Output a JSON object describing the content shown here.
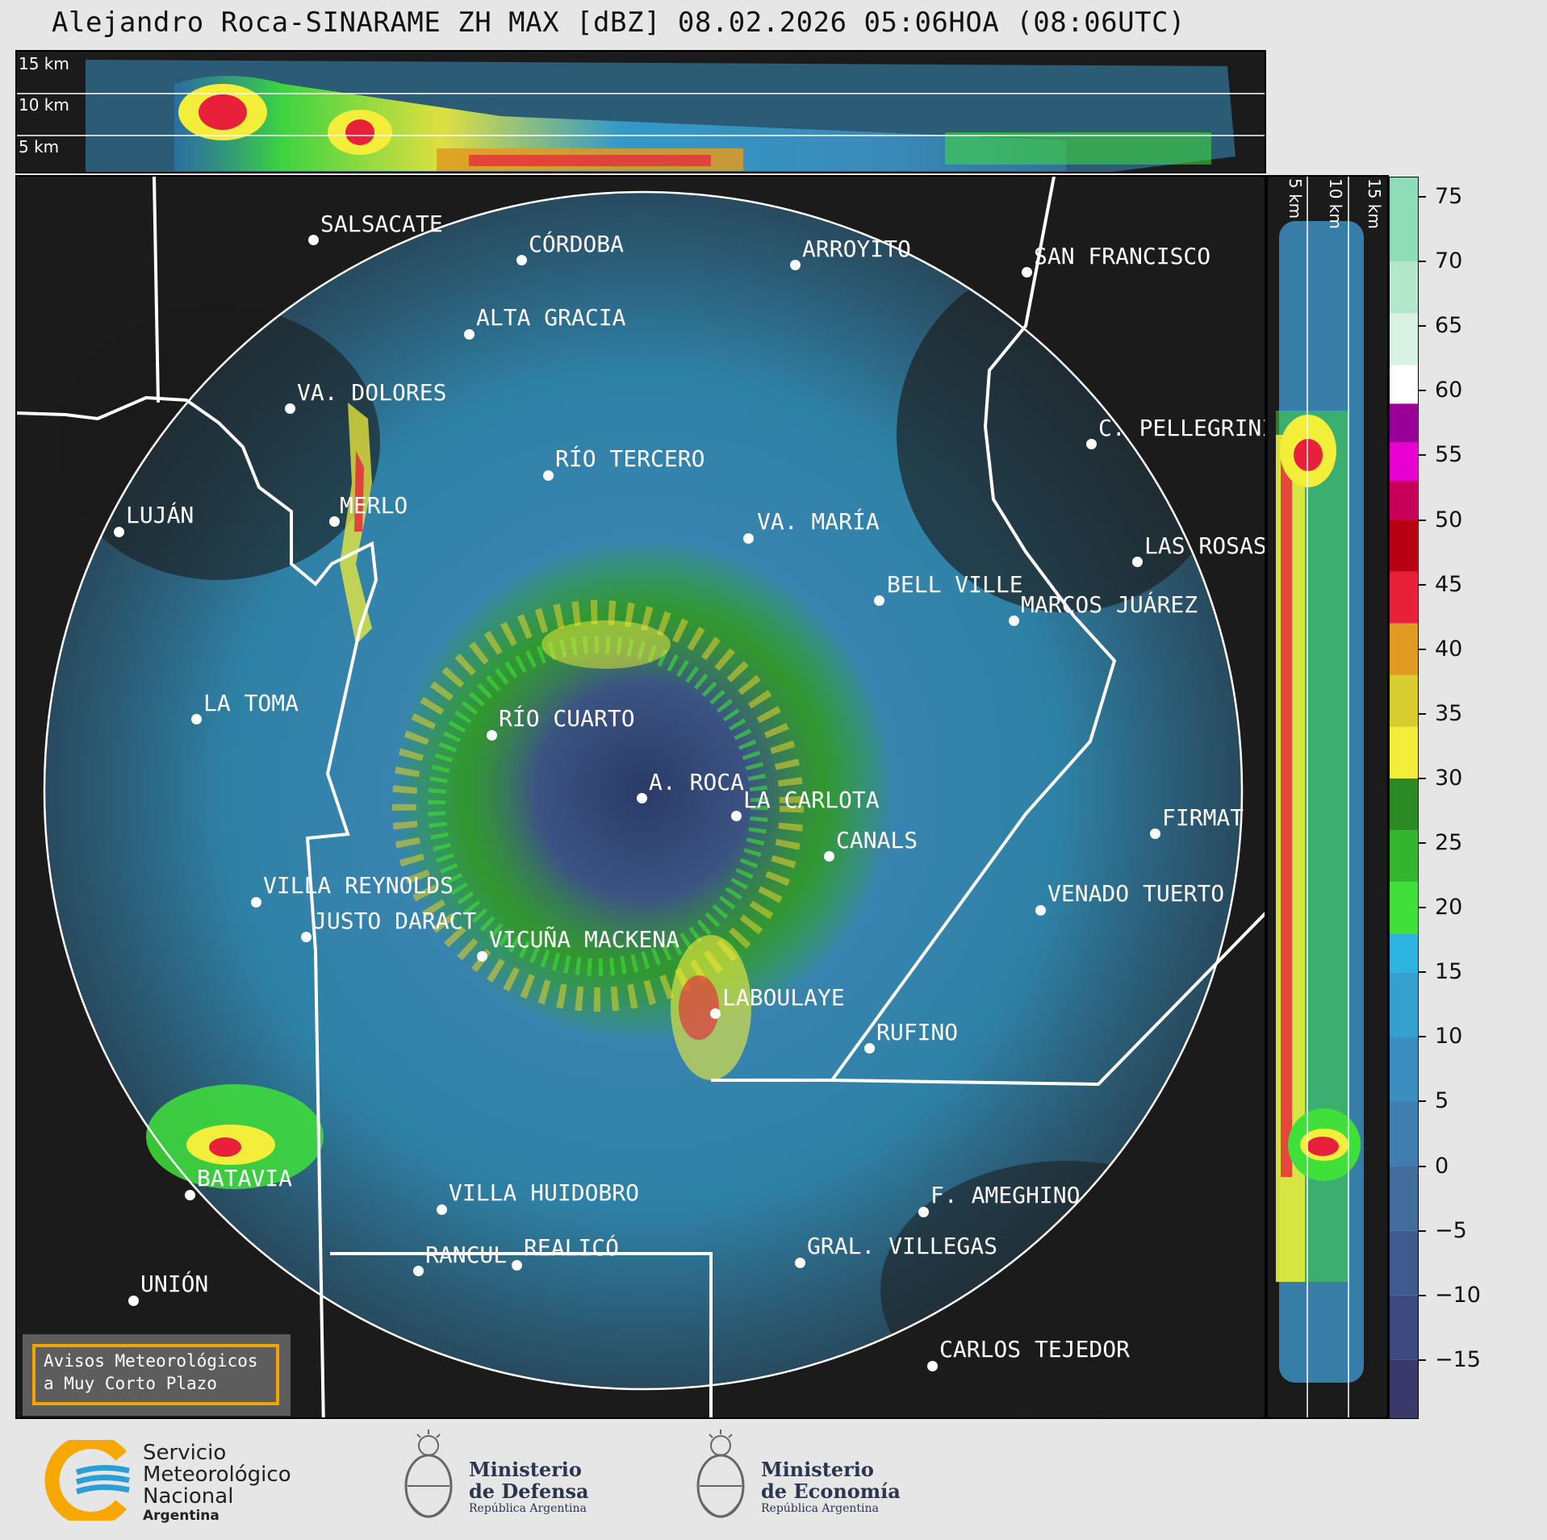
{
  "title": "Alejandro Roca-SINARAME ZH MAX [dBZ] 08.02.2026 05:06HOA (08:06UTC)",
  "top_section": {
    "height_labels": [
      "15 km",
      "10 km",
      "5 km"
    ]
  },
  "right_section": {
    "height_labels": [
      "5 km",
      "10 km",
      "15 km"
    ]
  },
  "colorbar": {
    "unit": "dBZ",
    "ticks": [
      "75",
      "70",
      "65",
      "60",
      "55",
      "50",
      "45",
      "40",
      "35",
      "30",
      "25",
      "20",
      "15",
      "10",
      "5",
      "0",
      "−5",
      "−10",
      "−15"
    ],
    "tick_values": [
      75,
      70,
      65,
      60,
      55,
      50,
      45,
      40,
      35,
      30,
      25,
      20,
      15,
      10,
      5,
      0,
      -5,
      -10,
      -15
    ],
    "range": [
      -19.5,
      76.5
    ],
    "colors": [
      {
        "from": -19.5,
        "to": -15,
        "color": "#3a3a6a"
      },
      {
        "from": -15,
        "to": -10,
        "color": "#3d4a80"
      },
      {
        "from": -10,
        "to": -5,
        "color": "#3f5a8e"
      },
      {
        "from": -5,
        "to": 0,
        "color": "#416c9c"
      },
      {
        "from": 0,
        "to": 5,
        "color": "#3f7eae"
      },
      {
        "from": 5,
        "to": 10,
        "color": "#3b8fc0"
      },
      {
        "from": 10,
        "to": 15,
        "color": "#34a0d0"
      },
      {
        "from": 15,
        "to": 18,
        "color": "#2cb3e0"
      },
      {
        "from": 18,
        "to": 22,
        "color": "#3fe03a"
      },
      {
        "from": 22,
        "to": 26,
        "color": "#33b52e"
      },
      {
        "from": 26,
        "to": 30,
        "color": "#2a8a24"
      },
      {
        "from": 30,
        "to": 34,
        "color": "#f2ee3a"
      },
      {
        "from": 34,
        "to": 38,
        "color": "#d8cc2e"
      },
      {
        "from": 38,
        "to": 42,
        "color": "#e09a20"
      },
      {
        "from": 42,
        "to": 46,
        "color": "#e8203a"
      },
      {
        "from": 46,
        "to": 50,
        "color": "#b80012"
      },
      {
        "from": 50,
        "to": 53,
        "color": "#c8005a"
      },
      {
        "from": 53,
        "to": 56,
        "color": "#e800d0"
      },
      {
        "from": 56,
        "to": 59,
        "color": "#9a0098"
      },
      {
        "from": 59,
        "to": 62,
        "color": "#ffffff"
      },
      {
        "from": 62,
        "to": 66,
        "color": "#d8f2e4"
      },
      {
        "from": 66,
        "to": 70,
        "color": "#b4e8cc"
      },
      {
        "from": 70,
        "to": 76.5,
        "color": "#8fdcb8"
      }
    ]
  },
  "cities": [
    {
      "id": "salsacate",
      "name": "SALSACATE"
    },
    {
      "id": "cordoba",
      "name": "CÓRDOBA"
    },
    {
      "id": "arroyito",
      "name": "ARROYITO"
    },
    {
      "id": "san-francisco",
      "name": "SAN FRANCISCO"
    },
    {
      "id": "alta-gracia",
      "name": "ALTA GRACIA"
    },
    {
      "id": "va-dolores",
      "name": "VA. DOLORES"
    },
    {
      "id": "c-pellegrini",
      "name": "C. PELLEGRINI"
    },
    {
      "id": "rio-tercero",
      "name": "RÍO TERCERO"
    },
    {
      "id": "merlo",
      "name": "MERLO"
    },
    {
      "id": "lujan",
      "name": "LUJÁN"
    },
    {
      "id": "va-maria",
      "name": "VA. MARÍA"
    },
    {
      "id": "las-rosas",
      "name": "LAS ROSAS"
    },
    {
      "id": "bell-ville",
      "name": "BELL VILLE"
    },
    {
      "id": "marcos-juarez",
      "name": "MARCOS JUÁREZ"
    },
    {
      "id": "la-toma",
      "name": "LA TOMA"
    },
    {
      "id": "rio-cuarto",
      "name": "RÍO CUARTO"
    },
    {
      "id": "a-roca",
      "name": "A. ROCA"
    },
    {
      "id": "la-carlota",
      "name": "LA CARLOTA"
    },
    {
      "id": "firmat",
      "name": "FIRMAT"
    },
    {
      "id": "canals",
      "name": "CANALS"
    },
    {
      "id": "villa-reynolds",
      "name": "VILLA REYNOLDS"
    },
    {
      "id": "venado-tuerto",
      "name": "VENADO TUERTO"
    },
    {
      "id": "justo-daract",
      "name": "JUSTO DARACT"
    },
    {
      "id": "vicuna-mackena",
      "name": "VICUÑA MACKENA"
    },
    {
      "id": "laboulaye",
      "name": "LABOULAYE"
    },
    {
      "id": "rufino",
      "name": "RUFINO"
    },
    {
      "id": "batavia",
      "name": "BATAVIA"
    },
    {
      "id": "villa-huidobro",
      "name": "VILLA HUIDOBRO"
    },
    {
      "id": "f-ameghino",
      "name": "F. AMEGHINO"
    },
    {
      "id": "rancul",
      "name": "RANCUL"
    },
    {
      "id": "realico",
      "name": "REALICÓ"
    },
    {
      "id": "gral-villegas",
      "name": "GRAL. VILLEGAS"
    },
    {
      "id": "union",
      "name": "UNIÓN"
    },
    {
      "id": "carlos-tejedor",
      "name": "CARLOS TEJEDOR"
    }
  ],
  "warning_box": {
    "line1": "Avisos Meteorológicos",
    "line2": "a Muy Corto Plazo"
  },
  "logos": {
    "smn": {
      "line1": "Servicio",
      "line2": "Meteorológico",
      "line3": "Nacional",
      "line4": "Argentina"
    },
    "defensa": {
      "line1": "Ministerio",
      "line2": "de Defensa",
      "line3": "República Argentina"
    },
    "economia": {
      "line1": "Ministerio",
      "line2": "de Economía",
      "line3": "República Argentina"
    }
  }
}
